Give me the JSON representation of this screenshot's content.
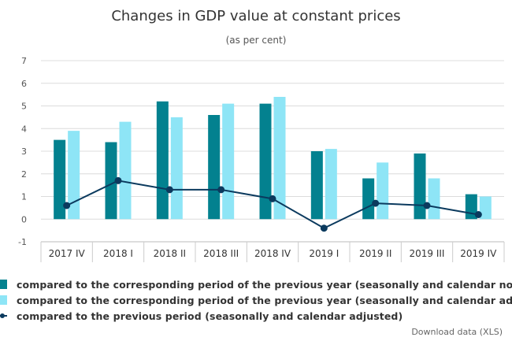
{
  "chart_data": {
    "type": "bar",
    "title": "Changes in GDP value at constant prices",
    "subtitle": "(as per cent)",
    "categories": [
      "2017 IV",
      "2018 I",
      "2018 II",
      "2018 III",
      "2018 IV",
      "2019 I",
      "2019 II",
      "2019 III",
      "2019 IV"
    ],
    "ylim": [
      -1,
      7
    ],
    "yticks": [
      -1,
      0,
      1,
      2,
      3,
      4,
      5,
      6,
      7
    ],
    "grid": true,
    "legend_position": "bottom-left",
    "series": [
      {
        "name": "compared to the corresponding period of the previous year (seasonally and calendar non-adjusted)",
        "type": "bar",
        "color": "#03818f",
        "values": [
          3.5,
          3.4,
          5.2,
          4.6,
          5.1,
          3.0,
          1.8,
          2.9,
          1.1
        ]
      },
      {
        "name": "compared to the corresponding period of the previous year (seasonally and calendar adjusted)",
        "type": "bar",
        "color": "#8ee5f6",
        "values": [
          3.9,
          4.3,
          4.5,
          5.1,
          5.4,
          3.1,
          2.5,
          1.8,
          1.0
        ]
      },
      {
        "name": "compared to the previous period (seasonally and calendar adjusted)",
        "type": "line",
        "color": "#0b3a5e",
        "values": [
          0.6,
          1.7,
          1.3,
          1.3,
          0.9,
          -0.4,
          0.7,
          0.6,
          0.2
        ]
      }
    ]
  },
  "download_label": "Download data (XLS)"
}
